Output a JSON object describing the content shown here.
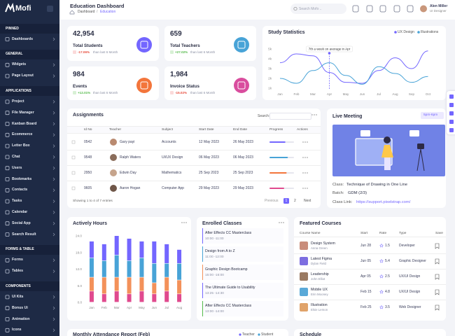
{
  "sidebar": {
    "brand": "Mofi",
    "sections": [
      {
        "title": "PINNED",
        "items": [
          "Dashboards"
        ]
      },
      {
        "title": "GENERAL",
        "items": [
          "Widgets",
          "Page Layout"
        ]
      },
      {
        "title": "APPLICATIONS",
        "items": [
          "Project",
          "File Manager",
          "Kanban Board",
          "Ecommerce",
          "Letter Box",
          "Chat",
          "Users",
          "Bookmarks",
          "Contacts",
          "Tasks",
          "Calendar",
          "Social App",
          "Search Result"
        ]
      },
      {
        "title": "FORMS & TABLE",
        "items": [
          "Forms",
          "Tables"
        ]
      },
      {
        "title": "COMPONENTS",
        "items": [
          "UI Kits",
          "Bonus Ui",
          "Animation",
          "Icons"
        ]
      }
    ]
  },
  "header": {
    "title": "Education Dashboard",
    "breadcrumb": [
      "Dashboard",
      "/",
      "Education"
    ],
    "search_placeholder": "Search Mofo ..",
    "user_name": "Alen Miller",
    "user_role": "UI Designer"
  },
  "stats": [
    {
      "value": "42,954",
      "label": "Total Students",
      "change": "-17.06%",
      "note": "than last 6 Month"
    },
    {
      "value": "659",
      "label": "Total Teachers",
      "change": "+27.02%",
      "note": "than last 6 Month"
    },
    {
      "value": "984",
      "label": "Events",
      "change": "+12.01%",
      "note": "than last 6 Month"
    },
    {
      "value": "1,984",
      "label": "Invoice Status",
      "change": "-15.02%",
      "note": "than last 6 Month"
    }
  ],
  "study_statistics": {
    "title": "Study Statistics",
    "annotation": "7th a week on average in Apr",
    "categories": [
      "Jan",
      "Feb",
      "Mar",
      "Apr",
      "May",
      "Jun",
      "Jul",
      "Aug",
      "Sep",
      "Oct"
    ],
    "ylim": [
      1000,
      5000
    ],
    "yticks": [
      {
        "value": 5000,
        "label": "5k"
      },
      {
        "value": 4000,
        "label": "4k"
      },
      {
        "value": 3000,
        "label": "3k"
      },
      {
        "value": 2000,
        "label": "2k"
      },
      {
        "value": 1000,
        "label": "1k"
      }
    ],
    "series": [
      {
        "name": "UX Design",
        "color": "#7366ff",
        "values": [
          3600,
          4500,
          4300,
          2600,
          1600,
          1500,
          2800,
          4100,
          3000,
          4800
        ]
      },
      {
        "name": "Illustrations",
        "color": "#48a3d7",
        "values": [
          2000,
          1500,
          2800,
          3600,
          2300,
          1400,
          3200,
          2500,
          1600,
          2200
        ]
      }
    ]
  },
  "assignments": {
    "title": "Assignments",
    "search_label": "Search:",
    "columns": [
      "Id No",
      "Teacher",
      "Subject",
      "Start Date",
      "End Date",
      "Progress",
      "Actions"
    ],
    "rows": [
      [
        "0542",
        "Gary payi",
        "Accounts",
        "12 May 2023",
        "26 May 2023"
      ],
      [
        "9548",
        "Ralph Waters",
        "UI/UX Design",
        "06 May 2023",
        "06 May 2023"
      ],
      [
        "2950",
        "Edwin Day",
        "Mathematics",
        "25 Sep 2023",
        "25 Sep 2023"
      ],
      [
        "9605",
        "Aaron Hogan",
        "Computer App",
        "29 May 2023",
        "29 May 2023"
      ]
    ],
    "progress": [
      65,
      75,
      70,
      60
    ],
    "footer": "Showing 1 to 4 of 7 entries",
    "pagination": [
      "Previous",
      "1",
      "2",
      "Next"
    ]
  },
  "live_meeting": {
    "title": "Live Meeting",
    "time": "5pm-6pm",
    "class_label": "Class:",
    "class_value": "Technique of Drawing in One Line",
    "batch_label": "Batch:",
    "batch_value": "GDM (2/3)",
    "link_label": "Class Link:",
    "link_value": "https://support.pixelstrap.com/"
  },
  "actively_hours": {
    "title": "Actively Hours",
    "categories": [
      "Jan",
      "Feb",
      "Mar",
      "Apr",
      "May",
      "Jun",
      "Jul",
      "Aug"
    ],
    "ylim": [
      0,
      24
    ],
    "yticks": [
      {
        "value": 0,
        "label": "0.0"
      },
      {
        "value": 6,
        "label": "6.0"
      },
      {
        "value": 12,
        "label": "12.0"
      },
      {
        "value": 18,
        "label": "18.0"
      },
      {
        "value": 24,
        "label": "24.0"
      }
    ],
    "series": [
      {
        "color": "#e04a8e",
        "values": [
          4,
          3,
          4,
          3,
          4,
          3,
          4,
          3
        ]
      },
      {
        "color": "#f3915a",
        "values": [
          5,
          6,
          5,
          6,
          5,
          4,
          5,
          5
        ]
      },
      {
        "color": "#48a3d7",
        "values": [
          7,
          6,
          8,
          6,
          7,
          7,
          5,
          6
        ]
      },
      {
        "color": "#7366ff",
        "values": [
          6,
          6,
          7,
          8,
          6,
          8,
          7,
          5
        ]
      }
    ]
  },
  "enrolled_classes": {
    "title": "Enrolled Classes",
    "items": [
      {
        "name": "After Effects CC Masterclass",
        "time": "10:00 -11:00",
        "color": "#7366ff"
      },
      {
        "name": "Design from A to Z",
        "time": "11:00 -12:00",
        "color": "#48a3d7"
      },
      {
        "name": "Graphic Design Bootcamp",
        "time": "15:00 -16:00",
        "color": "#f3915a"
      },
      {
        "name": "The Ultimate Guide to Usability",
        "time": "13:25 -14:30",
        "color": "#7366ff"
      },
      {
        "name": "After Effects CC Masterclass",
        "time": "13:00 -14:00",
        "color": "#54ba4a"
      }
    ]
  },
  "featured_courses": {
    "title": "Featured Courses",
    "columns": [
      "Course Name",
      "Start",
      "Rate",
      "Type",
      "Save"
    ],
    "rows": [
      [
        "Design System",
        "Anna Green",
        "Jun 28",
        "1.5",
        "Developer"
      ],
      [
        "Latest Figma",
        "Dylan Field",
        "Jun 05",
        "5.4",
        "Graphic Designer"
      ],
      [
        "Leadership",
        "John Elliot",
        "Apr 05",
        "2.5",
        "UX/UI Design"
      ],
      [
        "Mobile UX",
        "Erin Mooney",
        "Feb 15",
        "4.8",
        "UX/UI Design"
      ],
      [
        "Illustration",
        "Elsie Lemon",
        "Feb 25",
        "3.5",
        "Web Designer"
      ]
    ]
  },
  "attendance": {
    "title": "Monthly Attendance Report (Feb)",
    "legend": [
      "Teacher",
      "Student"
    ]
  },
  "schedule": {
    "title": "Schedule"
  }
}
